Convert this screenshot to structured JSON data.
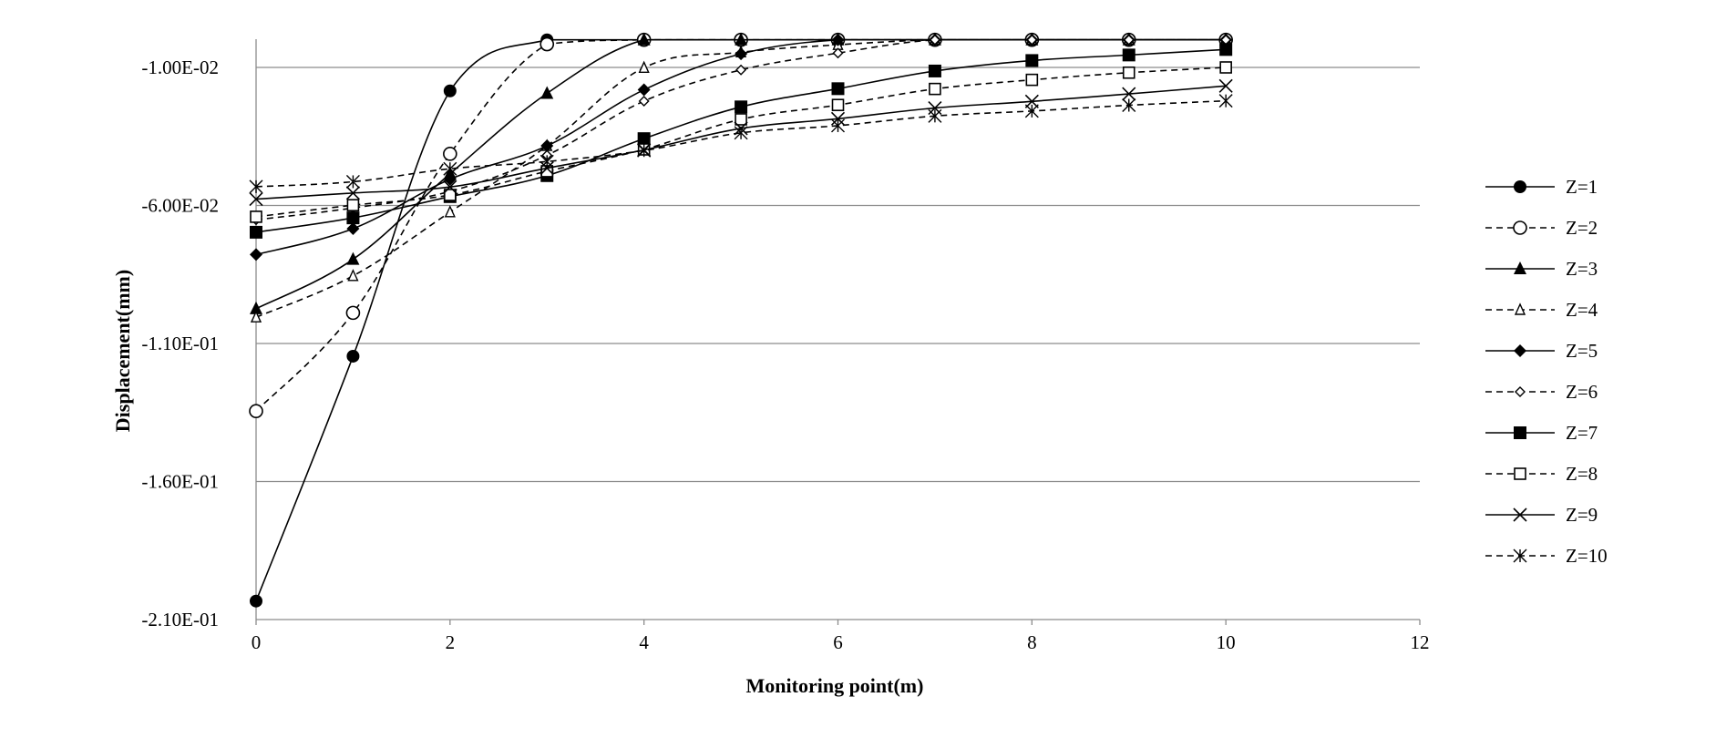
{
  "chart_data": {
    "type": "line",
    "xlabel": "Monitoring point(m)",
    "ylabel": "Displacement(mm)",
    "xlim": [
      0,
      12
    ],
    "ylim": [
      -0.21,
      0.0
    ],
    "x_ticks": [
      0,
      2,
      4,
      6,
      8,
      10,
      12
    ],
    "x_tick_labels": [
      "0",
      "2",
      "4",
      "6",
      "8",
      "10",
      "12"
    ],
    "y_ticks": [
      -0.21,
      -0.16,
      -0.11,
      -0.06,
      -0.01
    ],
    "y_tick_labels": [
      "-2.10E-01",
      "-1.60E-01",
      "-1.10E-01",
      "-6.00E-02",
      "-1.00E-02"
    ],
    "grid": "horizontal",
    "legend_position": "right",
    "x": [
      0,
      1,
      2,
      3,
      4,
      5,
      6,
      7,
      8,
      9,
      10
    ],
    "series": [
      {
        "name": "Z=1",
        "marker": "circle-filled",
        "dash": "solid",
        "values": [
          -0.2033,
          -0.1146,
          -0.0185,
          0.0,
          0.0,
          0.0,
          0.0,
          0.0,
          0.0,
          0.0,
          0.0
        ]
      },
      {
        "name": "Z=2",
        "marker": "circle-open",
        "dash": "dashed",
        "values": [
          -0.1345,
          -0.0989,
          -0.0413,
          -0.0016,
          0.0,
          0.0,
          0.0,
          0.0,
          0.0,
          0.0,
          0.0
        ]
      },
      {
        "name": "Z=3",
        "marker": "triangle-filled",
        "dash": "solid",
        "values": [
          -0.0974,
          -0.0795,
          -0.0485,
          -0.0194,
          0.0,
          0.0,
          0.0,
          0.0,
          0.0,
          0.0,
          0.0
        ]
      },
      {
        "name": "Z=4",
        "marker": "triangle-open",
        "dash": "dashed",
        "values": [
          -0.1005,
          -0.0855,
          -0.0624,
          -0.0384,
          -0.0101,
          -0.0045,
          -0.0018,
          0.0,
          0.0,
          0.0,
          0.0
        ]
      },
      {
        "name": "Z=5",
        "marker": "diamond-filled",
        "dash": "solid",
        "values": [
          -0.0778,
          -0.0684,
          -0.0505,
          -0.0384,
          -0.0181,
          -0.0051,
          0.0,
          0.0,
          0.0,
          0.0,
          0.0
        ]
      },
      {
        "name": "Z=6",
        "marker": "diamond-open",
        "dash": "dashed",
        "values": [
          -0.0652,
          -0.0609,
          -0.0549,
          -0.0418,
          -0.0222,
          -0.0109,
          -0.0048,
          0.0,
          0.0,
          0.0,
          0.0
        ]
      },
      {
        "name": "Z=7",
        "marker": "square-filled",
        "dash": "solid",
        "values": [
          -0.0697,
          -0.0645,
          -0.0568,
          -0.0492,
          -0.0358,
          -0.0243,
          -0.0177,
          -0.0113,
          -0.0075,
          -0.0055,
          -0.0035
        ]
      },
      {
        "name": "Z=8",
        "marker": "square-open",
        "dash": "dashed",
        "values": [
          -0.0641,
          -0.0599,
          -0.0562,
          -0.0476,
          -0.0397,
          -0.0288,
          -0.0236,
          -0.0178,
          -0.0145,
          -0.0119,
          -0.01
        ]
      },
      {
        "name": "Z=9",
        "marker": "x",
        "dash": "solid",
        "values": [
          -0.0577,
          -0.0555,
          -0.0533,
          -0.0465,
          -0.0399,
          -0.0321,
          -0.0286,
          -0.0247,
          -0.0223,
          -0.0196,
          -0.0167
        ]
      },
      {
        "name": "Z=10",
        "marker": "asterisk",
        "dash": "dashed",
        "values": [
          -0.0532,
          -0.0514,
          -0.0467,
          -0.0441,
          -0.0401,
          -0.0337,
          -0.0311,
          -0.0276,
          -0.0258,
          -0.0237,
          -0.0221
        ]
      }
    ]
  }
}
